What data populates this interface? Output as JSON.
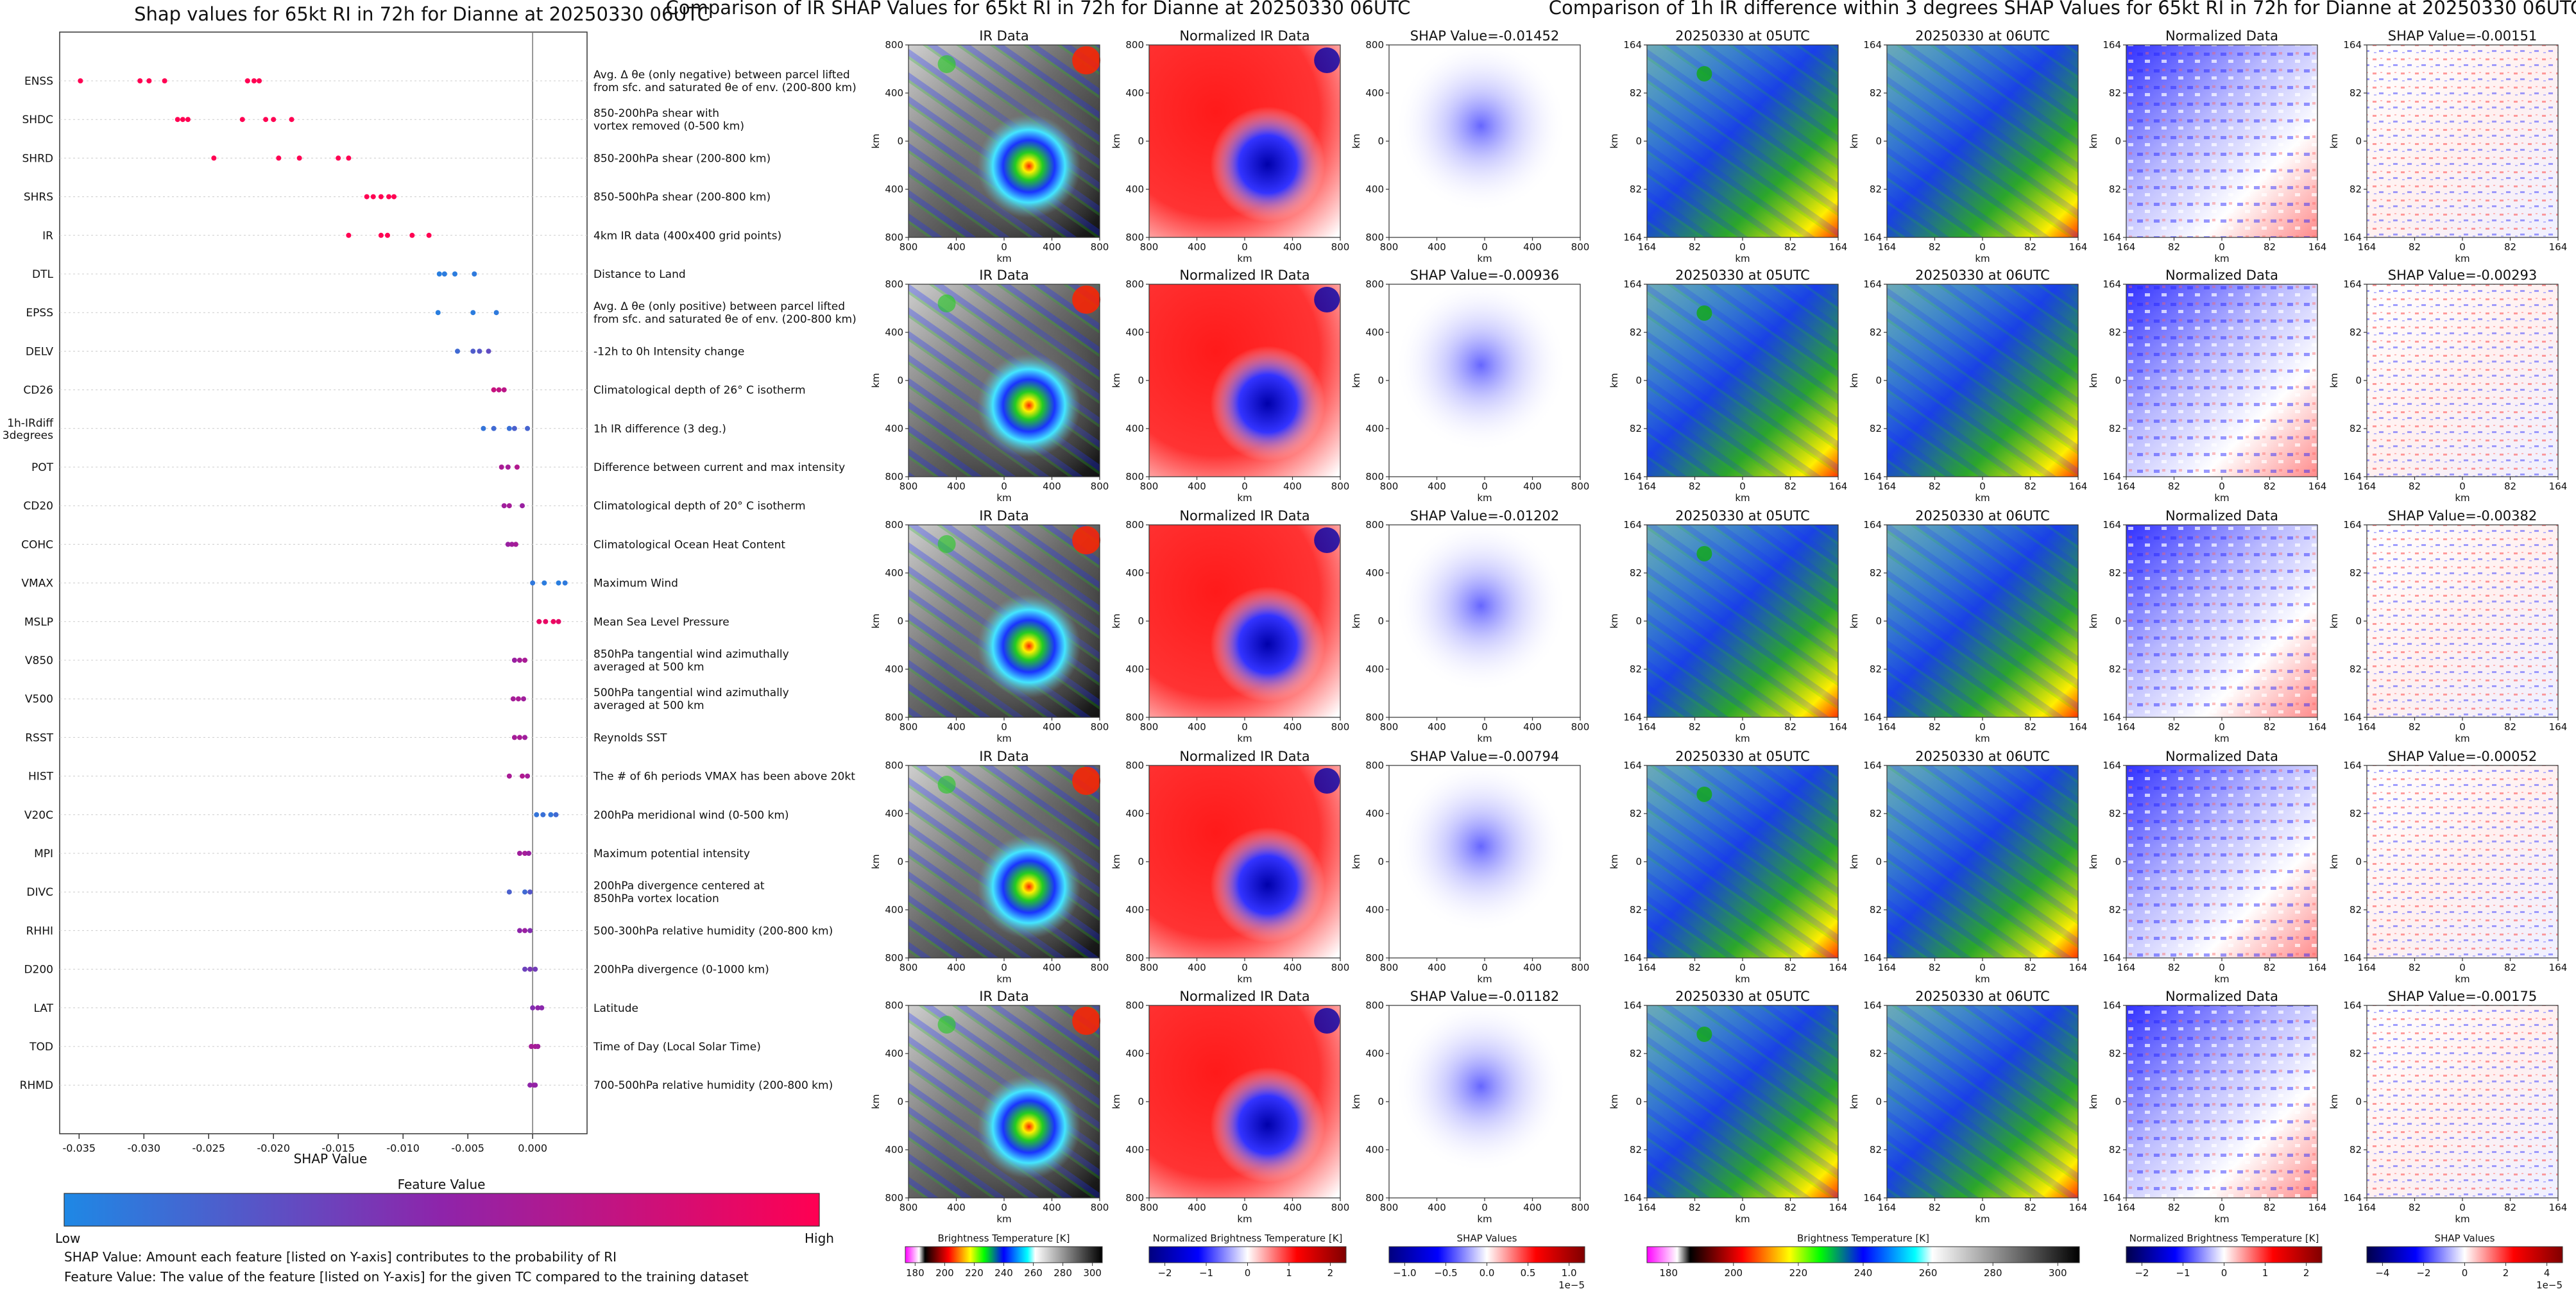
{
  "summary_plot": {
    "title": "Shap values for 65kt RI in 72h for Dianne at 20250330 06UTC",
    "xlabel": "SHAP Value",
    "xlim": [
      -0.0365,
      0.0042
    ],
    "xticks": [
      "-0.035",
      "-0.030",
      "-0.025",
      "-0.020",
      "-0.015",
      "-0.010",
      "-0.005",
      "0.000"
    ],
    "colorbar_title": "Feature Value",
    "colorbar_low": "Low",
    "colorbar_high": "High",
    "note1": "SHAP Value: Amount each feature [listed on Y-axis] contributes to the probability of RI",
    "note2": "Feature Value: The value of the feature [listed on Y-axis] for the given TC compared to the training dataset"
  },
  "chart_data": [
    {
      "type": "scatter",
      "title": "Shap values for 65kt RI in 72h for Dianne at 20250330 06UTC",
      "xlabel": "SHAP Value",
      "xlim": [
        -0.0365,
        0.0042
      ],
      "features": [
        {
          "name": "ENSS",
          "desc": [
            "Avg. Δ θe (only negative) between parcel lifted",
            "from sfc. and saturated θe of env. (200-800 km)"
          ],
          "points": [
            [
              -0.0349,
              1
            ],
            [
              -0.0303,
              1
            ],
            [
              -0.0296,
              1
            ],
            [
              -0.0284,
              1
            ],
            [
              -0.022,
              1
            ],
            [
              -0.0215,
              1
            ],
            [
              -0.0211,
              1
            ]
          ]
        },
        {
          "name": "SHDC",
          "desc": [
            "850-200hPa shear with",
            "vortex removed (0-500 km)"
          ],
          "points": [
            [
              -0.0274,
              1
            ],
            [
              -0.027,
              1
            ],
            [
              -0.0266,
              1
            ],
            [
              -0.0224,
              1
            ],
            [
              -0.0206,
              1
            ],
            [
              -0.02,
              1
            ],
            [
              -0.0186,
              1
            ]
          ]
        },
        {
          "name": "SHRD",
          "desc": [
            "850-200hPa shear (200-800 km)"
          ],
          "points": [
            [
              -0.0246,
              1
            ],
            [
              -0.0196,
              1
            ],
            [
              -0.018,
              1
            ],
            [
              -0.015,
              1
            ],
            [
              -0.0142,
              1
            ]
          ]
        },
        {
          "name": "SHRS",
          "desc": [
            "850-500hPa shear (200-800 km)"
          ],
          "points": [
            [
              -0.0128,
              1
            ],
            [
              -0.0123,
              1
            ],
            [
              -0.0117,
              1
            ],
            [
              -0.0111,
              1
            ],
            [
              -0.0107,
              1
            ]
          ]
        },
        {
          "name": "IR",
          "desc": [
            "4km IR data (400x400 grid points)"
          ],
          "points": [
            [
              -0.0142,
              1
            ],
            [
              -0.0117,
              1
            ],
            [
              -0.0112,
              1
            ],
            [
              -0.0093,
              1
            ],
            [
              -0.008,
              1
            ]
          ]
        },
        {
          "name": "DTL",
          "desc": [
            "Distance to Land"
          ],
          "points": [
            [
              -0.0072,
              0.05
            ],
            [
              -0.0068,
              0.06
            ],
            [
              -0.006,
              0.06
            ],
            [
              -0.0045,
              0.07
            ]
          ]
        },
        {
          "name": "EPSS",
          "desc": [
            "Avg. Δ θe (only positive) between parcel lifted",
            "from sfc. and saturated θe of env. (200-800 km)"
          ],
          "points": [
            [
              -0.0073,
              0.05
            ],
            [
              -0.0046,
              0.06
            ],
            [
              -0.0028,
              0.07
            ]
          ]
        },
        {
          "name": "DELV",
          "desc": [
            "-12h to 0h Intensity change"
          ],
          "points": [
            [
              -0.0058,
              0.15
            ],
            [
              -0.0046,
              0.22
            ],
            [
              -0.0041,
              0.25
            ],
            [
              -0.0034,
              0.3
            ]
          ]
        },
        {
          "name": "CD26",
          "desc": [
            "Climatological depth of 26° C isotherm"
          ],
          "points": [
            [
              -0.003,
              0.75
            ],
            [
              -0.0026,
              0.72
            ],
            [
              -0.0022,
              0.7
            ]
          ]
        },
        {
          "name": "1h-IRdiff\n3degrees",
          "desc": [
            "1h IR difference (3 deg.)"
          ],
          "points": [
            [
              -0.0038,
              0.1
            ],
            [
              -0.003,
              0.15
            ],
            [
              -0.0018,
              0.12
            ],
            [
              -0.0014,
              0.2
            ],
            [
              -0.0004,
              0.18
            ]
          ]
        },
        {
          "name": "POT",
          "desc": [
            "Difference between current and max intensity"
          ],
          "points": [
            [
              -0.0024,
              0.62
            ],
            [
              -0.0019,
              0.6
            ],
            [
              -0.0012,
              0.66
            ]
          ]
        },
        {
          "name": "CD20",
          "desc": [
            "Climatological depth of 20° C isotherm"
          ],
          "points": [
            [
              -0.0022,
              0.58
            ],
            [
              -0.0018,
              0.6
            ],
            [
              -0.0008,
              0.55
            ]
          ]
        },
        {
          "name": "COHC",
          "desc": [
            "Climatological Ocean Heat Content"
          ],
          "points": [
            [
              -0.0019,
              0.55
            ],
            [
              -0.0016,
              0.58
            ],
            [
              -0.0013,
              0.6
            ]
          ]
        },
        {
          "name": "VMAX",
          "desc": [
            "Maximum Wind"
          ],
          "points": [
            [
              0.0,
              0.08
            ],
            [
              0.0009,
              0.06
            ],
            [
              0.002,
              0.05
            ],
            [
              0.0025,
              0.07
            ]
          ]
        },
        {
          "name": "MSLP",
          "desc": [
            "Mean Sea Level Pressure"
          ],
          "points": [
            [
              0.0005,
              0.9
            ],
            [
              0.001,
              0.9
            ],
            [
              0.0016,
              0.92
            ],
            [
              0.002,
              0.88
            ]
          ]
        },
        {
          "name": "V850",
          "desc": [
            "850hPa tangential wind azimuthally",
            "averaged at 500 km"
          ],
          "points": [
            [
              -0.0014,
              0.55
            ],
            [
              -0.001,
              0.6
            ],
            [
              -0.0006,
              0.62
            ]
          ]
        },
        {
          "name": "V500",
          "desc": [
            "500hPa tangential wind azimuthally",
            "averaged at 500 km"
          ],
          "points": [
            [
              -0.0015,
              0.6
            ],
            [
              -0.0011,
              0.62
            ],
            [
              -0.0007,
              0.58
            ]
          ]
        },
        {
          "name": "RSST",
          "desc": [
            "Reynolds SST"
          ],
          "points": [
            [
              -0.0014,
              0.6
            ],
            [
              -0.001,
              0.62
            ],
            [
              -0.0006,
              0.58
            ]
          ]
        },
        {
          "name": "HIST",
          "desc": [
            "The # of 6h periods VMAX has been above 20kt"
          ],
          "points": [
            [
              -0.0018,
              0.62
            ],
            [
              -0.0008,
              0.65
            ],
            [
              -0.0004,
              0.6
            ]
          ]
        },
        {
          "name": "V20C",
          "desc": [
            "200hPa meridional wind (0-500 km)"
          ],
          "points": [
            [
              0.0003,
              0.1
            ],
            [
              0.0008,
              0.12
            ],
            [
              0.0014,
              0.1
            ],
            [
              0.0018,
              0.15
            ]
          ]
        },
        {
          "name": "MPI",
          "desc": [
            "Maximum potential intensity"
          ],
          "points": [
            [
              -0.001,
              0.58
            ],
            [
              -0.0006,
              0.6
            ],
            [
              -0.0003,
              0.55
            ]
          ]
        },
        {
          "name": "DIVC",
          "desc": [
            "200hPa divergence centered at",
            "850hPa vortex location"
          ],
          "points": [
            [
              -0.0018,
              0.2
            ],
            [
              -0.0006,
              0.15
            ],
            [
              -0.0002,
              0.25
            ]
          ]
        },
        {
          "name": "RHHI",
          "desc": [
            "500-300hPa relative humidity (200-800 km)"
          ],
          "points": [
            [
              -0.001,
              0.5
            ],
            [
              -0.0006,
              0.55
            ],
            [
              -0.0002,
              0.45
            ]
          ]
        },
        {
          "name": "D200",
          "desc": [
            "200hPa divergence (0-1000 km)"
          ],
          "points": [
            [
              -0.0006,
              0.35
            ],
            [
              -0.0002,
              0.4
            ],
            [
              0.0002,
              0.38
            ]
          ]
        },
        {
          "name": "LAT",
          "desc": [
            "Latitude"
          ],
          "points": [
            [
              0.0,
              0.45
            ],
            [
              0.0004,
              0.5
            ],
            [
              0.0007,
              0.48
            ]
          ]
        },
        {
          "name": "TOD",
          "desc": [
            "Time of Day (Local Solar Time)"
          ],
          "points": [
            [
              -0.0001,
              0.6
            ],
            [
              0.0002,
              0.62
            ],
            [
              0.0004,
              0.58
            ]
          ]
        },
        {
          "name": "RHMD",
          "desc": [
            "700-500hPa relative humidity (200-800 km)"
          ],
          "points": [
            [
              -0.0002,
              0.5
            ],
            [
              0.0001,
              0.55
            ],
            [
              0.0002,
              0.52
            ]
          ]
        }
      ]
    },
    {
      "type": "heatmap",
      "title": "Comparison of IR SHAP Values for 65kt RI in 72h for Dianne at 20250330 06UTC",
      "columns": [
        "IR Data",
        "Normalized IR Data",
        "SHAP Value"
      ],
      "shap_values": [
        "-0.01452",
        "-0.00936",
        "-0.01202",
        "-0.00794",
        "-0.01182"
      ],
      "axis_label": "km",
      "ticks": [
        "800",
        "400",
        "0",
        "400",
        "800"
      ],
      "colorbars": [
        {
          "label": "Brightness Temperature [K]",
          "ticks": [
            "180",
            "200",
            "220",
            "240",
            "260",
            "280",
            "300"
          ]
        },
        {
          "label": "Normalized Brightness Temperature [K]",
          "ticks": [
            "−2",
            "−1",
            "0",
            "1",
            "2"
          ]
        },
        {
          "label": "SHAP Values",
          "ticks": [
            "−1.0",
            "−0.5",
            "0.0",
            "0.5",
            "1.0"
          ],
          "exponent": "1e−5"
        }
      ]
    },
    {
      "type": "heatmap",
      "title": "Comparison of 1h IR difference within 3 degrees SHAP Values for 65kt RI in 72h for Dianne at 20250330 06UTC",
      "columns": [
        "20250330 at 05UTC",
        "20250330 at 06UTC",
        "Normalized Data",
        "SHAP Value"
      ],
      "shap_values": [
        "-0.00151",
        "-0.00293",
        "-0.00382",
        "-0.00052",
        "-0.00175"
      ],
      "axis_label": "km",
      "ticks": [
        "164",
        "82",
        "0",
        "82",
        "164"
      ],
      "colorbars": [
        {
          "label": "Brightness Temperature [K]",
          "ticks": [
            "180",
            "200",
            "220",
            "240",
            "260",
            "280",
            "300"
          ]
        },
        {
          "label": "Normalized Brightness Temperature [K]",
          "ticks": [
            "−2",
            "−1",
            "0",
            "1",
            "2"
          ]
        },
        {
          "label": "SHAP Values",
          "ticks": [
            "−4",
            "−2",
            "0",
            "2",
            "4"
          ],
          "exponent": "1e−5"
        }
      ]
    }
  ]
}
